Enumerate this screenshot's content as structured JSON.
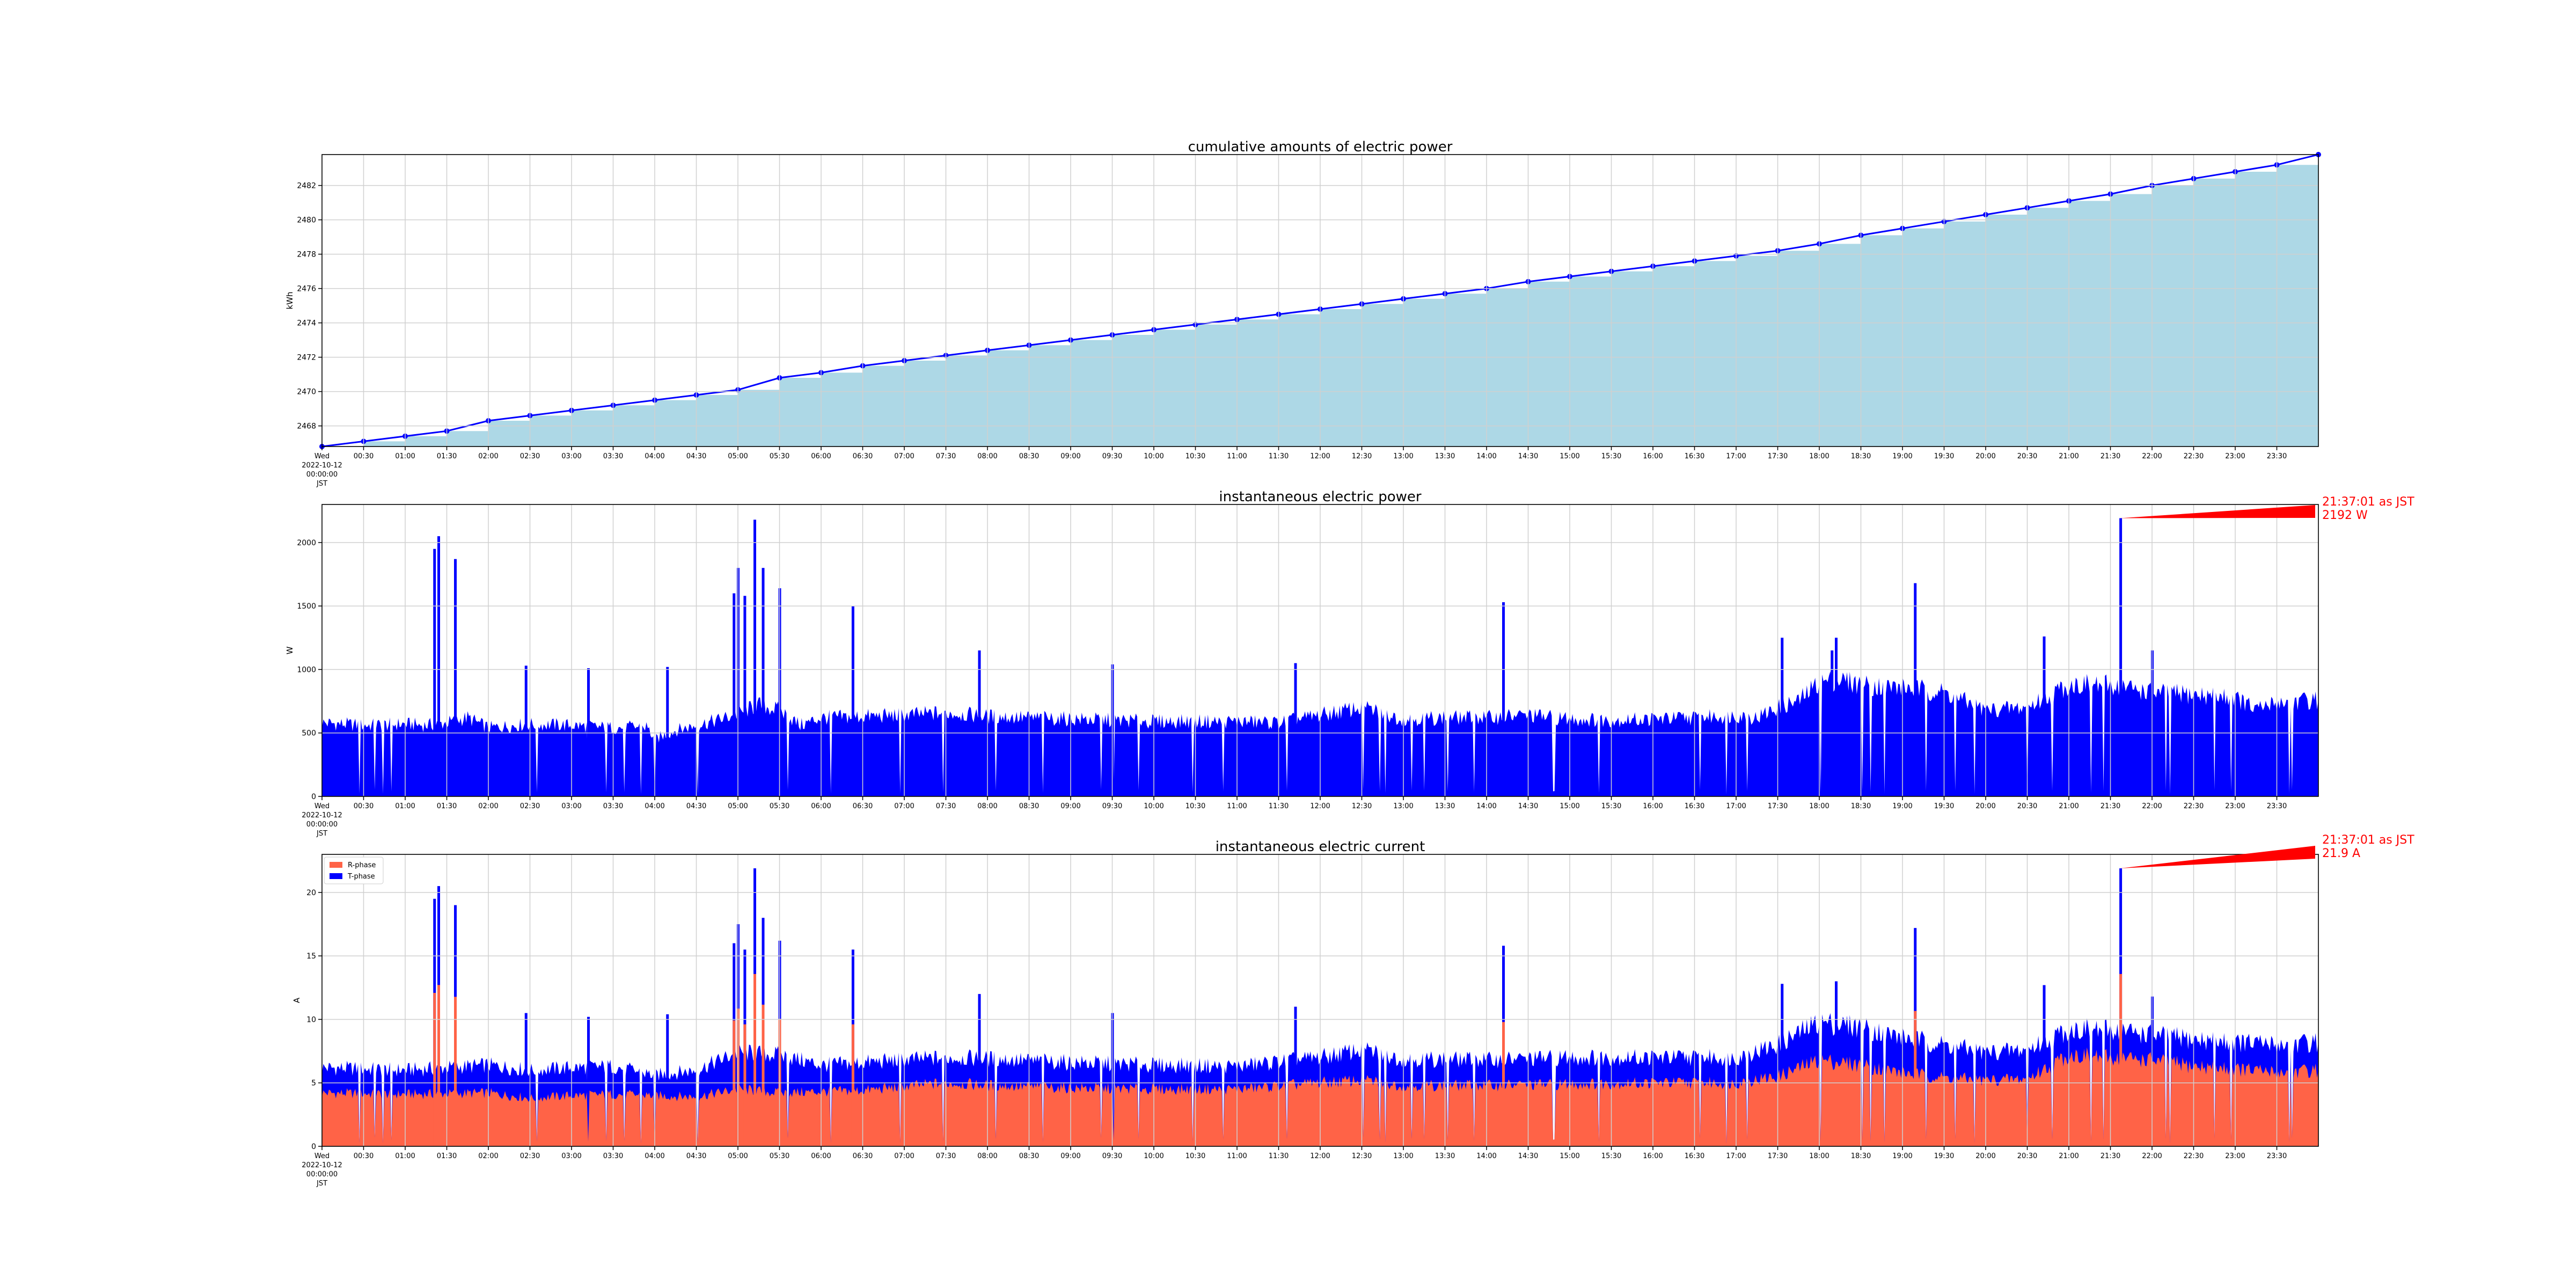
{
  "figure": {
    "x_tick_labels": [
      "00:30",
      "01:00",
      "01:30",
      "02:00",
      "02:30",
      "03:00",
      "03:30",
      "04:00",
      "04:30",
      "05:00",
      "05:30",
      "06:00",
      "06:30",
      "07:00",
      "07:30",
      "08:00",
      "08:30",
      "09:00",
      "09:30",
      "10:00",
      "10:30",
      "11:00",
      "11:30",
      "12:00",
      "12:30",
      "13:00",
      "13:30",
      "14:00",
      "14:30",
      "15:00",
      "15:30",
      "16:00",
      "16:30",
      "17:00",
      "17:30",
      "18:00",
      "18:30",
      "19:00",
      "19:30",
      "20:00",
      "20:30",
      "21:00",
      "21:30",
      "22:00",
      "22:30",
      "23:00",
      "23:30"
    ],
    "x_origin_label": [
      "Wed",
      "2022-10-12",
      "00:00:00",
      "JST"
    ],
    "colors": {
      "fill_light": "#add8e6",
      "line": "#0000ff",
      "power": "#0000ff",
      "r_phase": "#ff6347",
      "t_phase": "#0000ff",
      "annotation": "#ff0000",
      "grid": "#d0d0d0"
    }
  },
  "chart_data": [
    {
      "type": "area",
      "title": "cumulative amounts of electric power",
      "ylabel": "kWh",
      "xlabel": "",
      "x_unit": "hours since 2022-10-12 00:00 JST",
      "xlim": [
        0,
        24
      ],
      "ylim": [
        2466.8,
        2483.8
      ],
      "yticks": [
        2468,
        2470,
        2472,
        2474,
        2476,
        2478,
        2480,
        2482
      ],
      "x": [
        0,
        0.5,
        1,
        1.5,
        2,
        2.5,
        3,
        3.5,
        4,
        4.5,
        5,
        5.5,
        6,
        6.5,
        7,
        7.5,
        8,
        8.5,
        9,
        9.5,
        10,
        10.5,
        11,
        11.5,
        12,
        12.5,
        13,
        13.5,
        14,
        14.5,
        15,
        15.5,
        16,
        16.5,
        17,
        17.5,
        18,
        18.5,
        19,
        19.5,
        20,
        20.5,
        21,
        21.5,
        22,
        22.5,
        23,
        23.5
      ],
      "values": [
        2466.8,
        2467.1,
        2467.4,
        2467.7,
        2468.3,
        2468.6,
        2468.9,
        2469.2,
        2469.5,
        2469.8,
        2470.1,
        2470.8,
        2471.1,
        2471.5,
        2471.8,
        2472.1,
        2472.4,
        2472.7,
        2473.0,
        2473.3,
        2473.6,
        2473.9,
        2474.2,
        2474.5,
        2474.8,
        2475.1,
        2475.4,
        2475.7,
        2476.0,
        2476.4,
        2476.7,
        2477.0,
        2477.3,
        2477.6,
        2477.9,
        2478.2,
        2478.6,
        2479.1,
        2479.5,
        2479.9,
        2480.3,
        2480.7,
        2481.1,
        2481.5,
        2482.0,
        2482.4,
        2482.8,
        2483.2
      ],
      "grid": true,
      "markers": true
    },
    {
      "type": "bar",
      "title": "instantaneous electric power",
      "ylabel": "W",
      "xlabel": "",
      "x_unit": "hours since 2022-10-12 00:00 JST",
      "xlim": [
        0,
        24
      ],
      "ylim": [
        0,
        2300
      ],
      "yticks": [
        0,
        500,
        1000,
        1500,
        2000
      ],
      "grid": true,
      "profile": {
        "x": [
          0,
          0.5,
          1,
          1.25,
          1.5,
          1.75,
          2,
          2.5,
          3,
          3.5,
          3.9,
          4,
          4.25,
          4.5,
          4.75,
          5,
          5.25,
          5.5,
          5.75,
          6,
          6.5,
          7,
          7.5,
          8,
          8.5,
          9,
          9.5,
          10,
          10.5,
          11,
          11.5,
          12,
          12.5,
          13,
          13.5,
          14,
          14.5,
          15,
          15.5,
          16,
          16.5,
          17,
          17.25,
          17.5,
          17.75,
          18,
          18.25,
          18.5,
          19,
          19.5,
          20,
          20.5,
          21,
          21.5,
          22,
          22.5,
          23,
          23.25,
          23.5,
          24
        ],
        "y": [
          580,
          560,
          570,
          560,
          580,
          620,
          540,
          570,
          560,
          540,
          550,
          450,
          520,
          560,
          600,
          650,
          720,
          680,
          560,
          620,
          630,
          640,
          660,
          630,
          620,
          610,
          600,
          590,
          590,
          590,
          580,
          640,
          700,
          610,
          620,
          620,
          640,
          610,
          600,
          610,
          620,
          640,
          620,
          700,
          750,
          900,
          920,
          880,
          860,
          820,
          680,
          700,
          880,
          880,
          820,
          800,
          780,
          680,
          740,
          760
        ]
      },
      "spikes": [
        [
          1.35,
          1950
        ],
        [
          1.4,
          2050
        ],
        [
          1.6,
          1870
        ],
        [
          2.45,
          1030
        ],
        [
          3.2,
          1010
        ],
        [
          4.15,
          1020
        ],
        [
          4.95,
          1600
        ],
        [
          5.0,
          1800
        ],
        [
          5.08,
          1580
        ],
        [
          5.2,
          2180
        ],
        [
          5.3,
          1800
        ],
        [
          5.5,
          1640
        ],
        [
          6.38,
          1500
        ],
        [
          7.9,
          1150
        ],
        [
          9.5,
          1040
        ],
        [
          11.7,
          1050
        ],
        [
          14.2,
          1530
        ],
        [
          17.55,
          1250
        ],
        [
          18.15,
          1150
        ],
        [
          18.2,
          1250
        ],
        [
          19.15,
          1680
        ],
        [
          20.7,
          1260
        ],
        [
          21.62,
          2192
        ],
        [
          22.0,
          1150
        ]
      ],
      "annotation": {
        "time": "21:37:01 as JST",
        "value": "2192 W",
        "x": 21.617,
        "y": 2192
      }
    },
    {
      "type": "bar",
      "title": "instantaneous electric current",
      "ylabel": "A",
      "xlabel": "",
      "x_unit": "hours since 2022-10-12 00:00 JST",
      "xlim": [
        0,
        24
      ],
      "ylim": [
        0,
        23
      ],
      "yticks": [
        0,
        5,
        10,
        15,
        20
      ],
      "grid": true,
      "legend": {
        "position": "top-left",
        "entries": [
          "R-phase",
          "T-phase"
        ]
      },
      "series": [
        {
          "name": "R-phase",
          "x": [
            0,
            1,
            2,
            2.5,
            3,
            3.5,
            4,
            4.5,
            5,
            5.5,
            6,
            6.5,
            7,
            7.5,
            8,
            9,
            10,
            11,
            12,
            12.5,
            13,
            14,
            15,
            16,
            17,
            17.5,
            18,
            18.5,
            19,
            19.5,
            20,
            20.5,
            21,
            21.5,
            22,
            22.5,
            23,
            23.5,
            24
          ],
          "values": [
            4.2,
            4.1,
            4.2,
            3.8,
            4.0,
            4.1,
            4.0,
            3.9,
            4.5,
            4.2,
            4.3,
            4.4,
            4.7,
            5.0,
            4.8,
            4.6,
            4.5,
            4.5,
            5.0,
            5.2,
            4.8,
            4.8,
            4.9,
            5.0,
            5.0,
            5.5,
            6.8,
            6.4,
            5.8,
            5.4,
            5.2,
            5.3,
            7.2,
            7.0,
            6.8,
            6.3,
            6.1,
            5.8,
            6.0
          ]
        },
        {
          "name": "T-phase",
          "x": [
            0,
            1,
            2,
            2.5,
            3,
            3.5,
            4,
            4.5,
            5,
            5.5,
            6,
            6.5,
            7,
            7.5,
            8,
            9,
            10,
            11,
            12,
            12.5,
            13,
            14,
            15,
            16,
            17,
            17.5,
            18,
            18.5,
            19,
            19.5,
            20,
            20.5,
            21,
            21.5,
            22,
            22.5,
            23,
            23.5,
            24
          ],
          "values": [
            6.2,
            6.0,
            6.4,
            6.0,
            6.2,
            6.3,
            5.6,
            6.0,
            7.4,
            7.2,
            6.4,
            6.6,
            6.8,
            7.0,
            6.9,
            6.6,
            6.4,
            6.3,
            7.0,
            7.6,
            6.9,
            6.8,
            7.0,
            7.0,
            7.0,
            8.0,
            9.8,
            9.4,
            8.6,
            8.0,
            7.4,
            7.6,
            9.2,
            9.2,
            8.8,
            8.4,
            8.2,
            8.0,
            8.2
          ]
        }
      ],
      "spikes": [
        [
          1.35,
          19.5
        ],
        [
          1.4,
          20.5
        ],
        [
          1.6,
          19
        ],
        [
          2.45,
          10.5
        ],
        [
          3.2,
          10.2
        ],
        [
          4.15,
          10.4
        ],
        [
          4.95,
          16
        ],
        [
          5.0,
          17.5
        ],
        [
          5.08,
          15.5
        ],
        [
          5.2,
          21.9
        ],
        [
          5.3,
          18
        ],
        [
          5.5,
          16.2
        ],
        [
          6.38,
          15.5
        ],
        [
          7.9,
          12
        ],
        [
          9.5,
          10.5
        ],
        [
          11.7,
          11
        ],
        [
          14.2,
          15.8
        ],
        [
          17.55,
          12.8
        ],
        [
          18.2,
          13
        ],
        [
          19.15,
          17.2
        ],
        [
          20.7,
          12.7
        ],
        [
          21.62,
          21.9
        ],
        [
          22.0,
          11.8
        ]
      ],
      "annotation": {
        "time": "21:37:01 as JST",
        "value": "21.9 A",
        "x": 21.617,
        "y": 21.9
      }
    }
  ]
}
